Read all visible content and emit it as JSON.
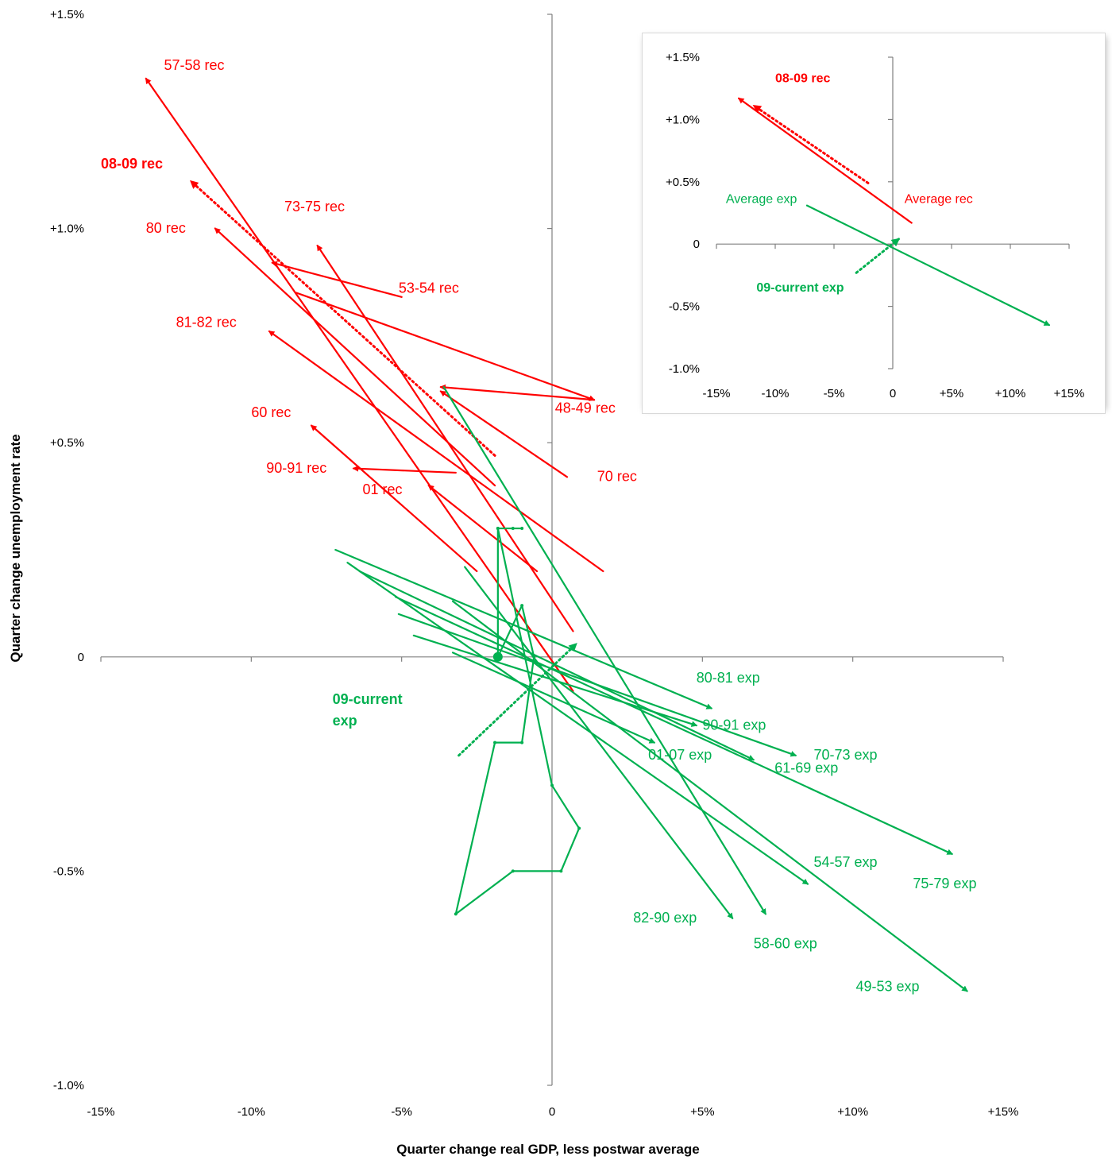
{
  "chart_data": {
    "type": "line",
    "title": "",
    "xlabel": "Quarter change real GDP, less postwar average",
    "ylabel": "Quarter change unemployment rate",
    "xlim": [
      -15,
      15
    ],
    "ylim": [
      -1.0,
      1.5
    ],
    "x_ticks": [
      "-15%",
      "-10%",
      "-5%",
      "0",
      "+5%",
      "+10%",
      "+15%"
    ],
    "y_ticks": [
      "-1.0%",
      "-0.5%",
      "0",
      "+0.5%",
      "+1.0%",
      "+1.5%"
    ],
    "colors": {
      "recession": "#ff0000",
      "expansion": "#00b050",
      "axis": "#808080"
    },
    "series": [
      {
        "name": "48-49 rec",
        "kind": "recession",
        "style": "solid",
        "x": [
          1.4,
          -3.7
        ],
        "y": [
          0.6,
          0.63
        ]
      },
      {
        "name": "53-54 rec",
        "kind": "recession",
        "style": "solid",
        "x": [
          -5.0,
          -9.3
        ],
        "y": [
          0.84,
          0.92
        ]
      },
      {
        "name": "57-58 rec",
        "kind": "recession",
        "style": "solid",
        "x": [
          0.7,
          -13.5
        ],
        "y": [
          -0.08,
          1.35
        ]
      },
      {
        "name": "60 rec",
        "kind": "recession",
        "style": "solid",
        "x": [
          -2.5,
          -8.0
        ],
        "y": [
          0.2,
          0.54
        ]
      },
      {
        "name": "70 rec",
        "kind": "recession",
        "style": "solid",
        "x": [
          0.5,
          -3.7
        ],
        "y": [
          0.42,
          0.62
        ]
      },
      {
        "name": "73-75 rec",
        "kind": "recession",
        "style": "solid",
        "x": [
          0.7,
          -7.8
        ],
        "y": [
          0.06,
          0.96
        ]
      },
      {
        "name": "80 rec",
        "kind": "recession",
        "style": "solid",
        "x": [
          -1.9,
          -11.2
        ],
        "y": [
          0.4,
          1.0
        ]
      },
      {
        "name": "81-82 rec",
        "kind": "recession",
        "style": "solid",
        "x": [
          1.7,
          -9.4
        ],
        "y": [
          0.2,
          0.76
        ]
      },
      {
        "name": "90-91 rec",
        "kind": "recession",
        "style": "solid",
        "x": [
          -3.2,
          -6.6
        ],
        "y": [
          0.43,
          0.44
        ]
      },
      {
        "name": "01 rec",
        "kind": "recession",
        "style": "solid",
        "x": [
          -0.5,
          -4.1
        ],
        "y": [
          0.2,
          0.4
        ]
      },
      {
        "name": "08-09 rec",
        "kind": "recession",
        "style": "dotted",
        "emphasis": true,
        "x": [
          -1.9,
          -12.0
        ],
        "y": [
          0.47,
          1.11
        ]
      },
      {
        "name": "48-49 rec (segment 2)",
        "kind": "recession",
        "style": "solid",
        "x": [
          -8.5,
          1.4
        ],
        "y": [
          0.85,
          0.6
        ]
      },
      {
        "name": "49-53 exp",
        "kind": "expansion",
        "style": "solid",
        "x": [
          -3.3,
          13.8
        ],
        "y": [
          0.13,
          -0.78
        ]
      },
      {
        "name": "54-57 exp",
        "kind": "expansion",
        "style": "solid",
        "x": [
          -6.8,
          8.5
        ],
        "y": [
          0.22,
          -0.53
        ]
      },
      {
        "name": "58-60 exp",
        "kind": "expansion",
        "style": "solid",
        "x": [
          -3.6,
          7.1
        ],
        "y": [
          0.63,
          -0.6
        ]
      },
      {
        "name": "61-69 exp",
        "kind": "expansion",
        "style": "solid",
        "x": [
          -6.4,
          6.7
        ],
        "y": [
          0.2,
          -0.24
        ]
      },
      {
        "name": "70-73 exp",
        "kind": "expansion",
        "style": "solid",
        "x": [
          -5.1,
          8.1
        ],
        "y": [
          0.1,
          -0.23
        ]
      },
      {
        "name": "75-79 exp",
        "kind": "expansion",
        "style": "solid",
        "x": [
          -5.2,
          13.3
        ],
        "y": [
          0.14,
          -0.46
        ]
      },
      {
        "name": "80-81 exp",
        "kind": "expansion",
        "style": "solid",
        "x": [
          -7.2,
          5.3
        ],
        "y": [
          0.25,
          -0.12
        ]
      },
      {
        "name": "82-90 exp",
        "kind": "expansion",
        "style": "solid",
        "x": [
          -2.9,
          6.0
        ],
        "y": [
          0.21,
          -0.61
        ]
      },
      {
        "name": "90-91 exp",
        "kind": "expansion",
        "style": "solid",
        "x": [
          -4.6,
          4.8
        ],
        "y": [
          0.05,
          -0.16
        ]
      },
      {
        "name": "01-07 exp",
        "kind": "expansion",
        "style": "solid",
        "x": [
          -3.3,
          3.4
        ],
        "y": [
          0.01,
          -0.2
        ]
      },
      {
        "name": "09-current exp",
        "kind": "expansion",
        "style": "dotted",
        "emphasis": true,
        "x": [
          -3.1,
          0.8
        ],
        "y": [
          -0.23,
          0.03
        ]
      },
      {
        "name": "09-current exp path",
        "kind": "expansion",
        "style": "solid",
        "x": [
          -1.8,
          -1.0,
          -0.6,
          -1.0,
          -1.9,
          -3.2,
          -1.3,
          0.3,
          0.9,
          0.0,
          -1.8,
          -1.3,
          -1.0,
          -1.8,
          -1.8
        ],
        "y": [
          0.0,
          0.12,
          0.0,
          -0.2,
          -0.2,
          -0.6,
          -0.5,
          -0.5,
          -0.4,
          -0.3,
          0.3,
          0.3,
          0.3,
          0.3,
          0.0
        ]
      }
    ],
    "labels": [
      {
        "text": "57-58 rec",
        "kind": "recession",
        "x": -12.9,
        "y": 1.37
      },
      {
        "text": "08-09 rec",
        "kind": "recession",
        "bold": true,
        "x": -15.0,
        "y": 1.14
      },
      {
        "text": "73-75 rec",
        "kind": "recession",
        "x": -8.9,
        "y": 1.04
      },
      {
        "text": "80 rec",
        "kind": "recession",
        "x": -13.5,
        "y": 0.99
      },
      {
        "text": "53-54 rec",
        "kind": "recession",
        "x": -5.1,
        "y": 0.85
      },
      {
        "text": "81-82 rec",
        "kind": "recession",
        "x": -12.5,
        "y": 0.77
      },
      {
        "text": "60 rec",
        "kind": "recession",
        "x": -10.0,
        "y": 0.56
      },
      {
        "text": "48-49 rec",
        "kind": "recession",
        "x": 0.1,
        "y": 0.57
      },
      {
        "text": "90-91 rec",
        "kind": "recession",
        "x": -9.5,
        "y": 0.43
      },
      {
        "text": "70 rec",
        "kind": "recession",
        "x": 1.5,
        "y": 0.41
      },
      {
        "text": "01 rec",
        "kind": "recession",
        "x": -6.3,
        "y": 0.38
      },
      {
        "text": "09-current",
        "kind": "expansion",
        "bold": true,
        "x": -7.3,
        "y": -0.11
      },
      {
        "text": "exp",
        "kind": "expansion",
        "bold": true,
        "x": -7.3,
        "y": -0.16
      },
      {
        "text": "80-81 exp",
        "kind": "expansion",
        "x": 4.8,
        "y": -0.06
      },
      {
        "text": "90-91 exp",
        "kind": "expansion",
        "x": 5.0,
        "y": -0.17
      },
      {
        "text": "70-73 exp",
        "kind": "expansion",
        "x": 8.7,
        "y": -0.24
      },
      {
        "text": "01-07 exp",
        "kind": "expansion",
        "x": 3.2,
        "y": -0.24
      },
      {
        "text": "61-69 exp",
        "kind": "expansion",
        "x": 7.4,
        "y": -0.27
      },
      {
        "text": "54-57 exp",
        "kind": "expansion",
        "x": 8.7,
        "y": -0.49
      },
      {
        "text": "75-79 exp",
        "kind": "expansion",
        "x": 12.0,
        "y": -0.54
      },
      {
        "text": "82-90 exp",
        "kind": "expansion",
        "x": 2.7,
        "y": -0.62
      },
      {
        "text": "58-60 exp",
        "kind": "expansion",
        "x": 6.7,
        "y": -0.68
      },
      {
        "text": "49-53 exp",
        "kind": "expansion",
        "x": 10.1,
        "y": -0.78
      }
    ],
    "inset": {
      "type": "line",
      "xlim": [
        -15,
        15
      ],
      "ylim": [
        -1.0,
        1.5
      ],
      "x_ticks": [
        "-15%",
        "-10%",
        "-5%",
        "0",
        "+5%",
        "+10%",
        "+15%"
      ],
      "y_ticks": [
        "-1.0%",
        "-0.5%",
        "0",
        "+0.5%",
        "+1.0%",
        "+1.5%"
      ],
      "series": [
        {
          "name": "Average rec",
          "kind": "recession",
          "style": "solid",
          "x": [
            1.6,
            -13.1
          ],
          "y": [
            0.17,
            1.17
          ]
        },
        {
          "name": "08-09 rec",
          "kind": "recession",
          "style": "dotted",
          "emphasis": true,
          "x": [
            -2.1,
            -11.8
          ],
          "y": [
            0.49,
            1.11
          ]
        },
        {
          "name": "Average exp",
          "kind": "expansion",
          "style": "solid",
          "x": [
            -7.3,
            13.3
          ],
          "y": [
            0.31,
            -0.65
          ]
        },
        {
          "name": "09-current exp",
          "kind": "expansion",
          "style": "dotted",
          "emphasis": true,
          "x": [
            -3.1,
            0.5
          ],
          "y": [
            -0.23,
            0.04
          ]
        }
      ],
      "labels": [
        {
          "text": "08-09 rec",
          "kind": "recession",
          "bold": true,
          "x": -10.0,
          "y": 1.3
        },
        {
          "text": "Average exp",
          "kind": "expansion",
          "x": -14.2,
          "y": 0.33
        },
        {
          "text": "Average rec",
          "kind": "recession",
          "x": 1.0,
          "y": 0.33
        },
        {
          "text": "09-current exp",
          "kind": "expansion",
          "bold": true,
          "x": -11.6,
          "y": -0.38
        }
      ]
    }
  }
}
